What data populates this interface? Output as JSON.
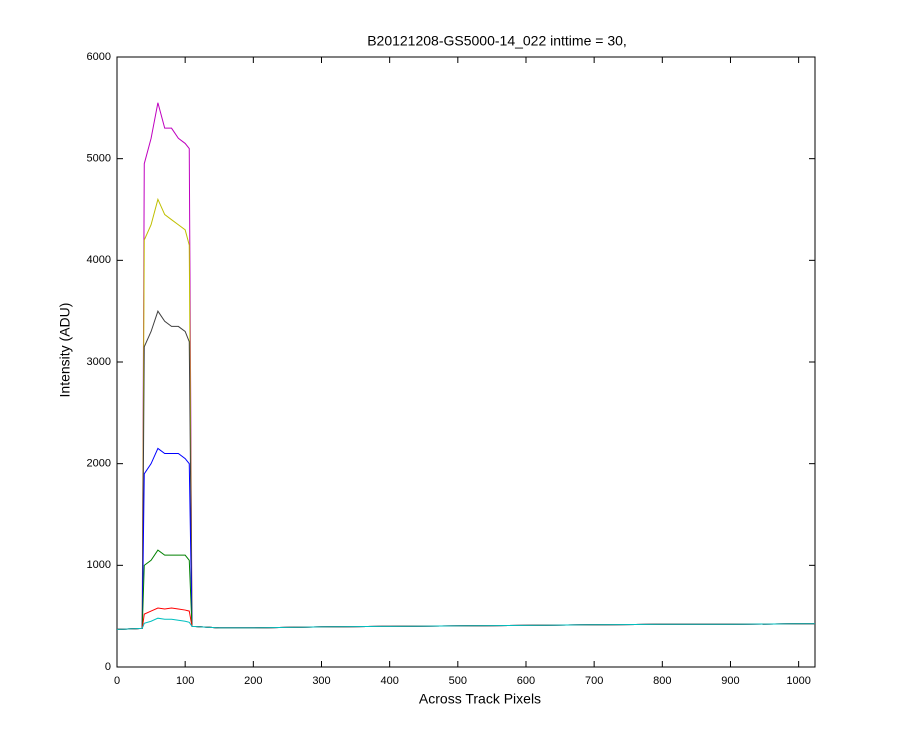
{
  "chart_data": {
    "type": "line",
    "title": "B20121208-GS5000-14_022 inttime = 30,",
    "x_label": "Across Track Pixels",
    "y_label": "Intensity (ADU)",
    "x": [
      0,
      20,
      37,
      40,
      50,
      60,
      70,
      80,
      90,
      100,
      106,
      110,
      150,
      200,
      300,
      400,
      500,
      600,
      700,
      800,
      900,
      1000,
      1024
    ],
    "series": [
      {
        "color": "#bf00bf",
        "values": [
          370,
          375,
          380,
          4950,
          5200,
          5550,
          5300,
          5300,
          5200,
          5150,
          5100,
          400,
          385,
          385,
          395,
          400,
          405,
          410,
          415,
          420,
          420,
          425,
          425
        ]
      },
      {
        "color": "#bfbf00",
        "values": [
          370,
          375,
          380,
          4200,
          4350,
          4600,
          4450,
          4400,
          4350,
          4300,
          4150,
          400,
          385,
          385,
          395,
          400,
          405,
          410,
          415,
          420,
          420,
          425,
          425
        ]
      },
      {
        "color": "#404040",
        "values": [
          370,
          375,
          380,
          3150,
          3300,
          3500,
          3400,
          3350,
          3350,
          3300,
          3200,
          400,
          385,
          385,
          395,
          400,
          405,
          410,
          415,
          420,
          420,
          425,
          425
        ]
      },
      {
        "color": "#0000ff",
        "values": [
          370,
          375,
          380,
          1900,
          2000,
          2150,
          2100,
          2100,
          2100,
          2050,
          2000,
          400,
          385,
          385,
          395,
          400,
          405,
          410,
          415,
          420,
          420,
          425,
          425
        ]
      },
      {
        "color": "#008000",
        "values": [
          370,
          375,
          380,
          1000,
          1050,
          1150,
          1100,
          1100,
          1100,
          1100,
          1050,
          400,
          385,
          385,
          395,
          400,
          405,
          410,
          415,
          420,
          420,
          425,
          425
        ]
      },
      {
        "color": "#ff0000",
        "values": [
          370,
          375,
          380,
          520,
          550,
          580,
          570,
          580,
          570,
          560,
          550,
          400,
          385,
          385,
          395,
          400,
          405,
          410,
          415,
          420,
          420,
          425,
          425
        ]
      },
      {
        "color": "#00bfbf",
        "values": [
          370,
          375,
          380,
          430,
          450,
          480,
          470,
          470,
          460,
          450,
          440,
          400,
          385,
          385,
          395,
          400,
          405,
          410,
          415,
          420,
          420,
          425,
          425
        ]
      }
    ],
    "xlim": [
      0,
      1024
    ],
    "ylim": [
      0,
      6000
    ],
    "xticks": [
      0,
      100,
      200,
      300,
      400,
      500,
      600,
      700,
      800,
      900,
      1000
    ],
    "yticks": [
      0,
      1000,
      2000,
      3000,
      4000,
      5000,
      6000
    ],
    "grid": false
  }
}
